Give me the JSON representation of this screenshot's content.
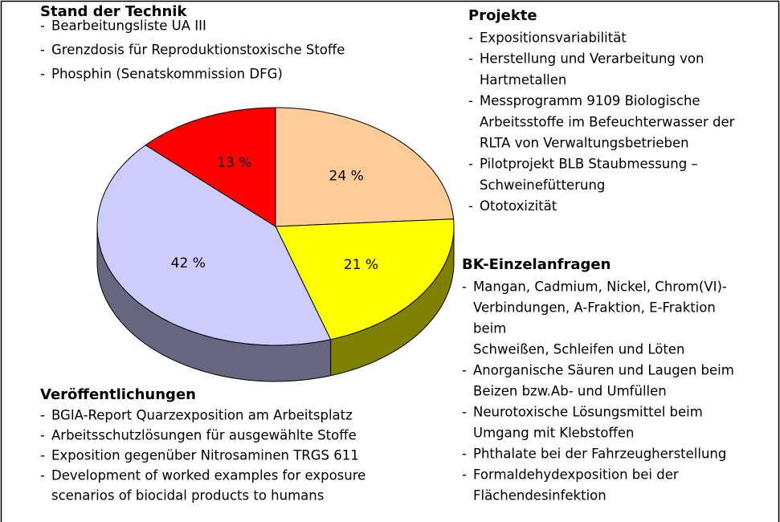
{
  "chart_data": {
    "type": "pie",
    "values": [
      24,
      21,
      42,
      13
    ],
    "value_labels": [
      "24 %",
      "21 %",
      "42 %",
      "13 %"
    ],
    "colors": [
      "#ffcc99",
      "#ffff00",
      "#ccccff",
      "#ff0000"
    ],
    "side_colors": [
      "#a07a55",
      "#808000",
      "#666680",
      "#990000"
    ],
    "annotations": [
      {
        "title": "Stand der Technik",
        "items": [
          [
            "Bearbeitungsliste UA III"
          ],
          [
            "Grenzdosis für Reproduktionstoxische Stoffe"
          ],
          [
            "Phosphin (Senatskommission DFG)"
          ]
        ]
      },
      {
        "title": "Projekte",
        "items": [
          [
            "Expositionsvariabilität"
          ],
          [
            "Herstellung und Verarbeitung von",
            "Hartmetallen"
          ],
          [
            "Messprogramm 9109 Biologische",
            "Arbeitsstoffe im Befeuchterwasser der",
            "RLTA von Verwaltungsbetrieben"
          ],
          [
            "Pilotprojekt BLB Staubmessung –",
            "Schweinefütterung"
          ],
          [
            "Ototoxizität"
          ]
        ]
      },
      {
        "title": "BK-Einzelanfragen",
        "items": [
          [
            "Mangan, Cadmium, Nickel, Chrom(VI)-",
            "Verbindungen, A-Fraktion, E-Fraktion",
            "beim",
            "Schweißen, Schleifen und Löten"
          ],
          [
            "Anorganische Säuren und Laugen beim",
            "Beizen bzw.Ab- und Umfüllen"
          ],
          [
            "Neurotoxische Lösungsmittel beim",
            "Umgang mit Klebstoffen"
          ],
          [
            "Phthalate bei der Fahrzeugherstellung"
          ],
          [
            "Formaldehydexposition bei der",
            "Flächendesinfektion"
          ]
        ]
      },
      {
        "title": "Veröffentlichungen",
        "items": [
          [
            "BGIA-Report Quarzexposition am Arbeitsplatz"
          ],
          [
            "Arbeitsschutzlösungen für ausgewählte Stoffe"
          ],
          [
            "Exposition gegenüber Nitrosaminen TRGS 611"
          ],
          [
            "Development of worked examples for exposure",
            "scenarios of biocidal products to humans"
          ]
        ]
      }
    ]
  }
}
